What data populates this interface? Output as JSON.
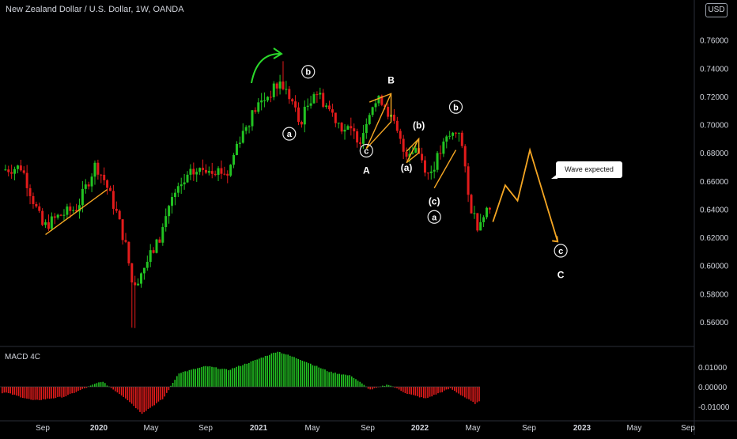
{
  "header": {
    "symbol_title": "New Zealand Dollar / U.S. Dollar, 1W, OANDA",
    "currency_badge": "USD"
  },
  "indicator": {
    "name": "MACD 4C"
  },
  "callout": {
    "text": "Wave expected"
  },
  "colors": {
    "background": "#000000",
    "bull": "#22c322",
    "bear": "#e21b1b",
    "wave_line": "#f5a623",
    "arrow": "#2bd92b",
    "text": "#d1d4dc"
  },
  "chart_data": [
    {
      "type": "candlestick",
      "title": "New Zealand Dollar / U.S. Dollar, 1W, OANDA",
      "y_axis_side": "right",
      "ylim": [
        0.545,
        0.78
      ],
      "y_ticks": [
        "0.76000",
        "0.74000",
        "0.72000",
        "0.70000",
        "0.68000",
        "0.66000",
        "0.64000",
        "0.62000",
        "0.60000",
        "0.58000",
        "0.56000"
      ],
      "x_ticks": [
        "Sep",
        "2020",
        "May",
        "Sep",
        "2021",
        "May",
        "Sep",
        "2022",
        "May",
        "Sep",
        "2023",
        "May",
        "Sep"
      ],
      "price_anchors": [
        [
          "2019-06-03",
          0.668
        ],
        [
          "2019-07-15",
          0.67
        ],
        [
          "2019-08-12",
          0.645
        ],
        [
          "2019-09-02",
          0.627
        ],
        [
          "2019-10-07",
          0.635
        ],
        [
          "2019-11-18",
          0.641
        ],
        [
          "2019-12-30",
          0.672
        ],
        [
          "2020-01-20",
          0.66
        ],
        [
          "2020-02-17",
          0.636
        ],
        [
          "2020-03-09",
          0.612
        ],
        [
          "2020-03-23",
          0.585
        ],
        [
          "2020-04-20",
          0.6
        ],
        [
          "2020-05-25",
          0.62
        ],
        [
          "2020-06-15",
          0.645
        ],
        [
          "2020-08-03",
          0.665
        ],
        [
          "2020-09-14",
          0.67
        ],
        [
          "2020-10-26",
          0.665
        ],
        [
          "2020-11-16",
          0.688
        ],
        [
          "2020-12-28",
          0.712
        ],
        [
          "2021-02-22",
          0.73
        ],
        [
          "2021-03-22",
          0.715
        ],
        [
          "2021-04-05",
          0.7
        ],
        [
          "2021-05-10",
          0.725
        ],
        [
          "2021-06-14",
          0.71
        ],
        [
          "2021-07-12",
          0.698
        ],
        [
          "2021-08-23",
          0.69
        ],
        [
          "2021-09-13",
          0.713
        ],
        [
          "2021-10-11",
          0.718
        ],
        [
          "2021-11-08",
          0.698
        ],
        [
          "2021-11-29",
          0.68
        ],
        [
          "2021-12-27",
          0.684
        ],
        [
          "2022-01-24",
          0.664
        ],
        [
          "2022-03-07",
          0.69
        ],
        [
          "2022-04-04",
          0.697
        ],
        [
          "2022-04-25",
          0.645
        ],
        [
          "2022-05-16",
          0.628
        ],
        [
          "2022-05-30",
          0.64
        ]
      ],
      "labels": [
        {
          "text": "b",
          "date": "2021-04-20",
          "price": 0.7375,
          "circled": true
        },
        {
          "text": "a",
          "date": "2021-03-08",
          "price": 0.6935,
          "circled": true
        },
        {
          "text": "c",
          "date": "2021-08-30",
          "price": 0.6815,
          "circled": true
        },
        {
          "text": "A",
          "date": "2021-08-30",
          "price": 0.6675,
          "circled": false
        },
        {
          "text": "B",
          "date": "2021-10-25",
          "price": 0.7315,
          "circled": false
        },
        {
          "text": "(b)",
          "date": "2021-12-27",
          "price": 0.6995,
          "circled": false
        },
        {
          "text": "(a)",
          "date": "2021-11-29",
          "price": 0.6695,
          "circled": false
        },
        {
          "text": "(c)",
          "date": "2022-01-31",
          "price": 0.6455,
          "circled": false
        },
        {
          "text": "a",
          "date": "2022-01-31",
          "price": 0.6345,
          "circled": true
        },
        {
          "text": "b",
          "date": "2022-03-21",
          "price": 0.7125,
          "circled": true
        },
        {
          "text": "c",
          "date": "2022-11-14",
          "price": 0.6105,
          "circled": true
        },
        {
          "text": "C",
          "date": "2022-11-14",
          "price": 0.5935,
          "circled": false
        }
      ],
      "projection": [
        [
          "2022-06-13",
          0.631
        ],
        [
          "2022-07-11",
          0.657
        ],
        [
          "2022-08-08",
          0.646
        ],
        [
          "2022-09-05",
          0.682
        ],
        [
          "2022-11-07",
          0.617
        ]
      ],
      "trend_lines": [
        [
          [
            "2019-09-02",
            0.622
          ],
          [
            "2020-01-20",
            0.654
          ]
        ],
        [
          [
            "2021-08-30",
            0.683
          ],
          [
            "2021-10-25",
            0.722
          ]
        ],
        [
          [
            "2021-11-29",
            0.673
          ],
          [
            "2021-12-27",
            0.69
          ]
        ],
        [
          [
            "2022-01-31",
            0.655
          ],
          [
            "2022-03-21",
            0.682
          ]
        ]
      ]
    },
    {
      "type": "histogram",
      "title": "MACD 4C",
      "y_axis_side": "right",
      "ylim": [
        -0.0145,
        0.019
      ],
      "y_ticks": [
        "0.01000",
        "0.00000",
        "-0.01000"
      ],
      "macd_anchors": [
        [
          "2019-06-03",
          -0.003
        ],
        [
          "2019-08-05",
          -0.007
        ],
        [
          "2019-10-14",
          -0.005
        ],
        [
          "2020-01-06",
          0.0028
        ],
        [
          "2020-03-02",
          -0.006
        ],
        [
          "2020-04-06",
          -0.0135
        ],
        [
          "2020-05-25",
          -0.006
        ],
        [
          "2020-06-29",
          0.007
        ],
        [
          "2020-08-31",
          0.0105
        ],
        [
          "2020-10-19",
          0.0085
        ],
        [
          "2020-12-14",
          0.013
        ],
        [
          "2021-02-08",
          0.018
        ],
        [
          "2021-04-05",
          0.0135
        ],
        [
          "2021-06-07",
          0.0075
        ],
        [
          "2021-07-26",
          0.0055
        ],
        [
          "2021-09-06",
          -0.0015
        ],
        [
          "2021-10-18",
          0.0012
        ],
        [
          "2021-11-29",
          -0.0035
        ],
        [
          "2022-01-10",
          -0.006
        ],
        [
          "2022-03-07",
          -0.0008
        ],
        [
          "2022-05-02",
          -0.0085
        ],
        [
          "2022-05-30",
          -0.006
        ]
      ]
    }
  ]
}
